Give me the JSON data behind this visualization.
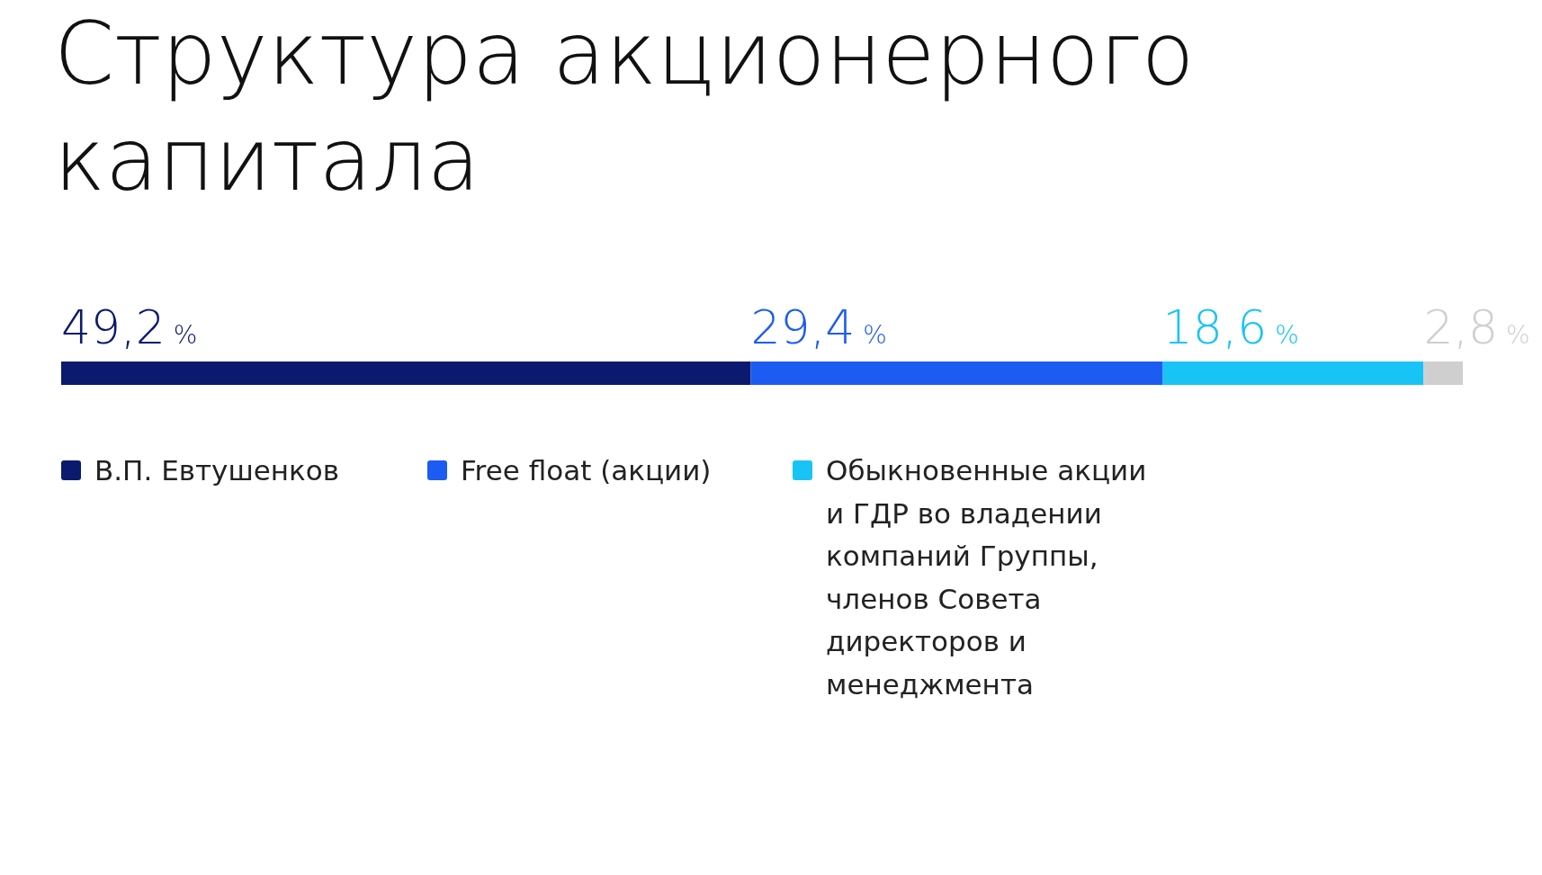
{
  "chart_data": {
    "type": "bar",
    "orientation": "horizontal",
    "stacked": true,
    "title": "Структура акционерного капитала",
    "categories": [
      null
    ],
    "xlim": [
      0,
      100
    ],
    "tick_labels": false,
    "legend": "bottom",
    "series": [
      {
        "name": "В.П. Евтушенков",
        "color": "#0b1a6e",
        "values": [
          49.2
        ],
        "value_labels": [
          "49,2 %"
        ]
      },
      {
        "name": "Free float (акции)",
        "color": "#1d5cf2",
        "values": [
          29.4
        ],
        "value_labels": [
          "29,4 %"
        ]
      },
      {
        "name": "Обыкновенные акции и ГДР во владении компаний Группы, членов Совета директоров и менеджмента",
        "color": "#18c4f6",
        "values": [
          18.6
        ],
        "value_labels": [
          "18,6 %"
        ]
      },
      {
        "color": "#cfcfcf",
        "values": [
          2.8
        ],
        "value_labels": [
          "2,8 %"
        ]
      }
    ]
  }
}
